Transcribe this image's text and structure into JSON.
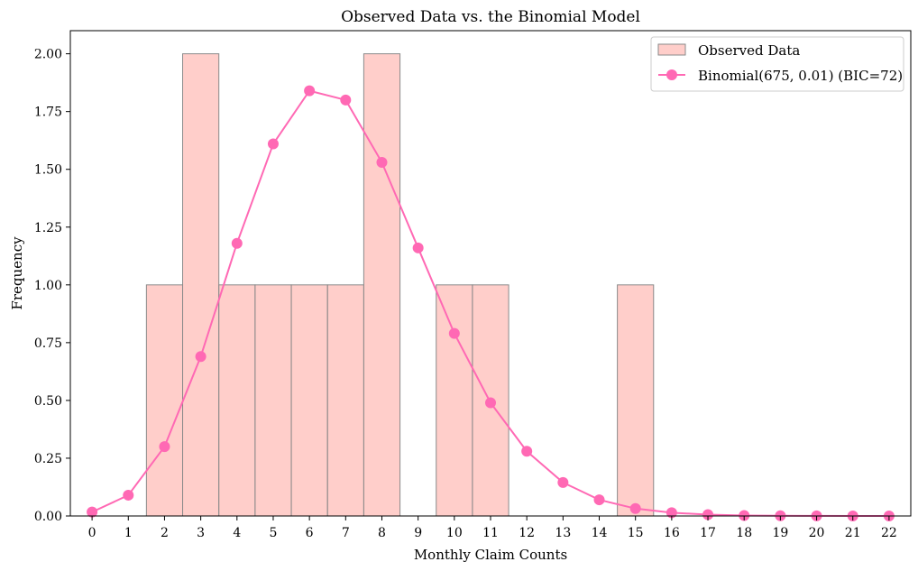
{
  "chart_data": {
    "type": "bar",
    "title": "Observed Data vs. the Binomial Model",
    "xlabel": "Monthly Claim Counts",
    "ylabel": "Frequency",
    "xlim": [
      -0.6,
      22.6
    ],
    "ylim": [
      0,
      2.1
    ],
    "x_ticks": [
      "0",
      "1",
      "2",
      "3",
      "4",
      "5",
      "6",
      "7",
      "8",
      "9",
      "10",
      "11",
      "12",
      "13",
      "14",
      "15",
      "16",
      "17",
      "18",
      "19",
      "20",
      "21",
      "22"
    ],
    "y_ticks": [
      "0.00",
      "0.25",
      "0.50",
      "0.75",
      "1.00",
      "1.25",
      "1.50",
      "1.75",
      "2.00"
    ],
    "grid": false,
    "legend_position": "top-right",
    "series": [
      {
        "name": "Observed Data",
        "kind": "bar",
        "color": "#ffb3ae",
        "edge_color": "#8a8a8a",
        "x": [
          2,
          3,
          4,
          5,
          6,
          7,
          8,
          10,
          11,
          15
        ],
        "values": [
          1,
          2,
          1,
          1,
          1,
          1,
          2,
          1,
          1,
          1
        ]
      },
      {
        "name": "Binomial(675, 0.01) (BIC=72)",
        "kind": "line",
        "color": "#ff69b4",
        "x": [
          0,
          1,
          2,
          3,
          4,
          5,
          6,
          7,
          8,
          9,
          10,
          11,
          12,
          13,
          14,
          15,
          16,
          17,
          18,
          19,
          20,
          21,
          22
        ],
        "values": [
          0.017,
          0.09,
          0.3,
          0.69,
          1.18,
          1.61,
          1.84,
          1.8,
          1.53,
          1.16,
          0.79,
          0.49,
          0.28,
          0.145,
          0.07,
          0.032,
          0.014,
          0.006,
          0.002,
          0.001,
          0.0003,
          0.0001,
          0.0
        ]
      }
    ]
  }
}
